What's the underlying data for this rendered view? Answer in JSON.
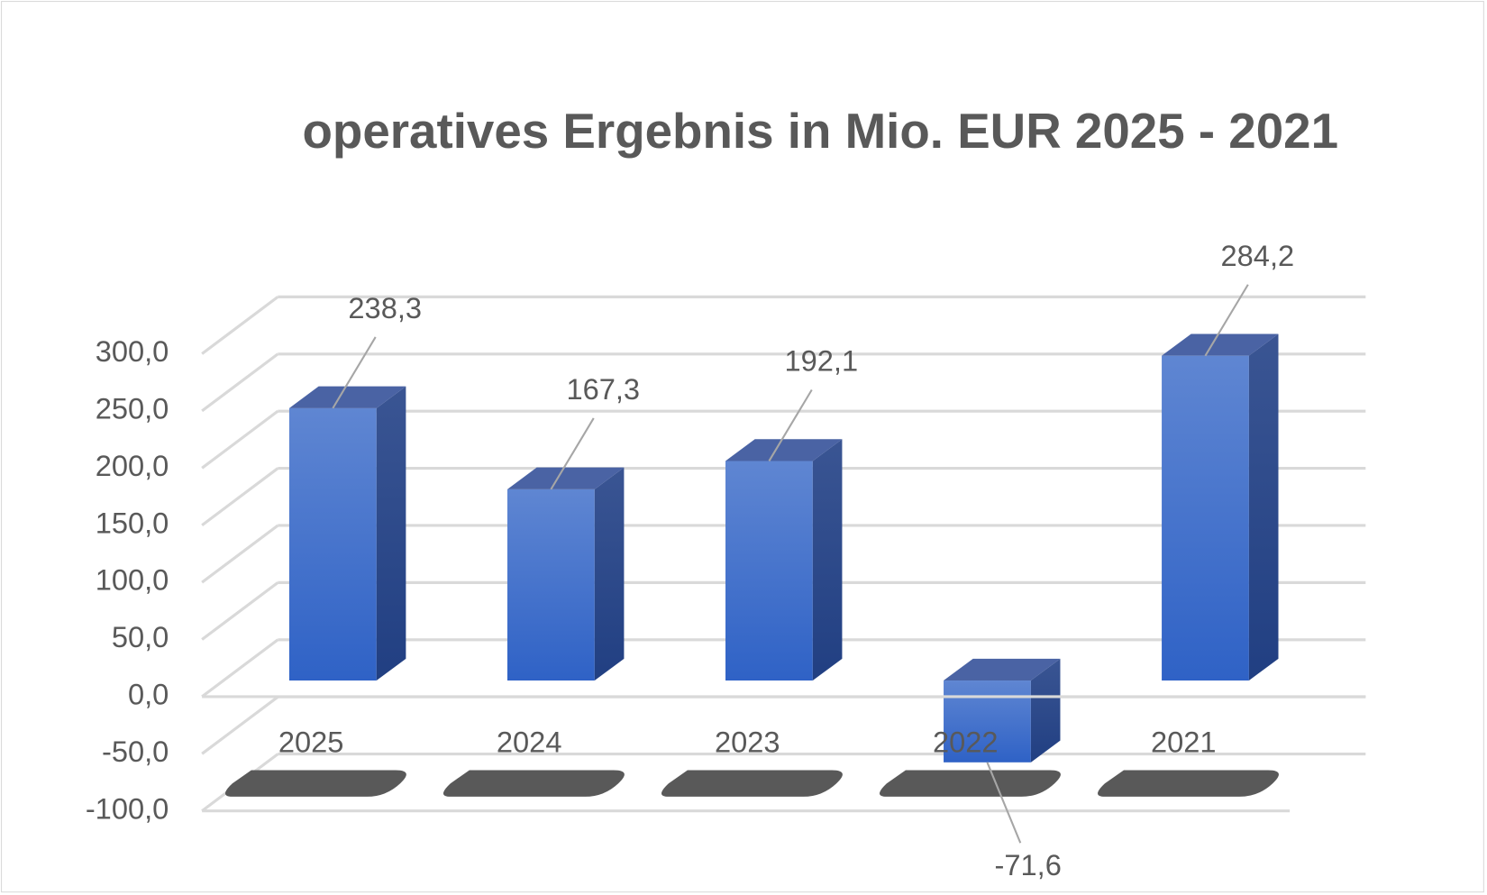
{
  "chart_data": {
    "type": "bar3d",
    "title": "operatives Ergebnis in Mio. EUR 2025 - 2021",
    "categories": [
      "2025",
      "2024",
      "2023",
      "2022",
      "2021"
    ],
    "values": [
      238.3,
      167.3,
      192.1,
      -71.6,
      284.2
    ],
    "value_labels": [
      "238,3",
      "167,3",
      "192,1",
      "-71,6",
      "284,2"
    ],
    "color": "#3a6cc8",
    "ylim": [
      -100,
      300
    ],
    "yticks": [
      {
        "value": -100,
        "label": "-100,0"
      },
      {
        "value": -50,
        "label": "-50,0"
      },
      {
        "value": 0,
        "label": "0,0"
      },
      {
        "value": 50,
        "label": "50,0"
      },
      {
        "value": 100,
        "label": "100,0"
      },
      {
        "value": 150,
        "label": "150,0"
      },
      {
        "value": 200,
        "label": "200,0"
      },
      {
        "value": 250,
        "label": "250,0"
      },
      {
        "value": 300,
        "label": "300,0"
      }
    ],
    "grid": true
  }
}
